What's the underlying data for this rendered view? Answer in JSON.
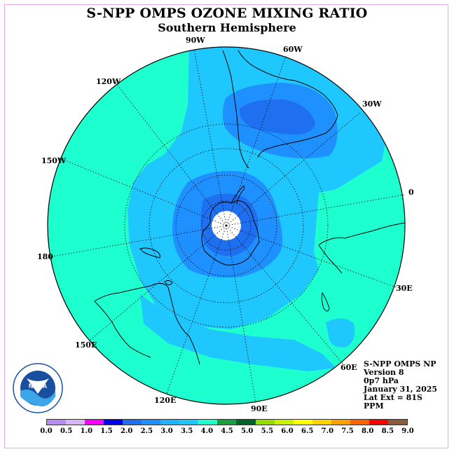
{
  "title": "S-NPP OMPS OZONE MIXING RATIO",
  "subtitle": "Southern Hemisphere",
  "longitude_labels": [
    "90W",
    "60W",
    "30W",
    "0",
    "30E",
    "60E",
    "90E",
    "120E",
    "150E",
    "180",
    "150W",
    "120W"
  ],
  "info": {
    "line1": "S-NPP OMPS NP",
    "line2": "Version 8",
    "line3": "0p7 hPa",
    "line4": "January 31, 2025",
    "line5": "Lat Ext = 81S",
    "line6": "PPM"
  },
  "logo_text": "NOAA",
  "logo_ring_text": "NATIONAL OCEANIC AND ATMOSPHERIC ADMINISTRATION · U.S. DEPARTMENT OF COMMERCE",
  "color_scale": {
    "ticks": [
      "0.0",
      "0.5",
      "1.0",
      "1.5",
      "2.0",
      "2.5",
      "3.0",
      "3.5",
      "4.0",
      "4.5",
      "5.0",
      "5.5",
      "6.0",
      "6.5",
      "7.0",
      "7.5",
      "8.0",
      "8.5",
      "9.0"
    ],
    "colors": [
      "#b88cf0",
      "#d8b4f8",
      "#ff00ff",
      "#0000ee",
      "#1e70f0",
      "#1e90ff",
      "#1eb4ff",
      "#1ec8ff",
      "#1effd0",
      "#16a040",
      "#006428",
      "#96dc00",
      "#c8f000",
      "#ffff00",
      "#ffd200",
      "#ffa000",
      "#ff6400",
      "#ff0000",
      "#8c5a3c"
    ]
  },
  "map_colors": {
    "band_3_5_4_0": "#1effd0",
    "band_3_0_3_5": "#1ec8ff",
    "band_2_5_3_0": "#1e90ff",
    "band_2_0_2_5": "#1e70f0",
    "missing": "#ffffff"
  }
}
